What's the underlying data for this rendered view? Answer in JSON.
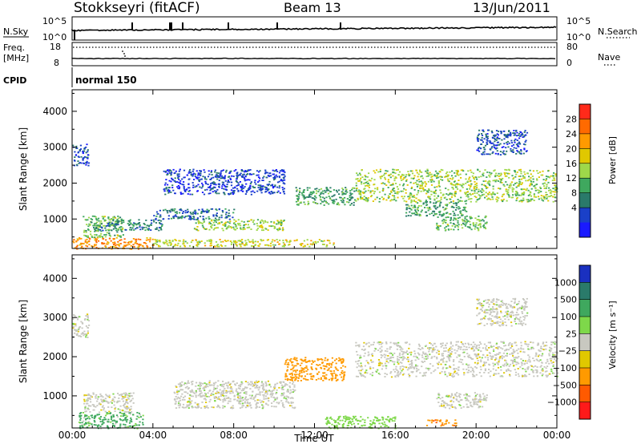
{
  "header": {
    "station": "Stokkseyri (fitACF)",
    "beam": "Beam 13",
    "date": "13/Jun/2011"
  },
  "strips": {
    "nsky_label": "N.Sky",
    "nsky_ticks": [
      "10^5",
      "10^0"
    ],
    "nsearch_label": "N.Search",
    "nsearch_ticks": [
      "10^5",
      "10^0"
    ],
    "freq_label_1": "Freq.",
    "freq_label_2": "[MHz]",
    "freq_ticks": [
      "18",
      "8"
    ],
    "nave_label": "Nave",
    "nave_ticks": [
      "80",
      "0"
    ],
    "cpid_label": "CPID",
    "cpid_value": "normal 150"
  },
  "axes": {
    "ylabel": "Slant Range [km]",
    "xlabel": "Time UT",
    "yticks": [
      "1000",
      "2000",
      "3000",
      "4000"
    ],
    "xticks": [
      "00:00",
      "04:00",
      "08:00",
      "12:00",
      "16:00",
      "20:00",
      "00:00"
    ]
  },
  "power_colorbar": {
    "label": "Power [dB]",
    "ticks": [
      "28",
      "24",
      "20",
      "16",
      "12",
      "8",
      "4"
    ],
    "colors": [
      "#ff2a1a",
      "#ff6a00",
      "#ff9a00",
      "#e0c800",
      "#9ed84a",
      "#3fa85e",
      "#2a7a6a",
      "#1a40c8",
      "#1a1aff"
    ]
  },
  "velocity_colorbar": {
    "label": "Velocity [m s⁻¹]",
    "ticks": [
      "1000",
      "500",
      "100",
      "25",
      "−25",
      "−100",
      "−500",
      "−1000"
    ],
    "colors": [
      "#1a30c0",
      "#2a7a6a",
      "#3fa85e",
      "#7ed84a",
      "#c8c8c0",
      "#e0c800",
      "#ff9a00",
      "#ff5a00",
      "#ff1a1a"
    ]
  },
  "chart_data": [
    {
      "type": "heatmap",
      "title": "Power",
      "xlabel": "Time UT",
      "ylabel": "Slant Range [km]",
      "x_range": [
        "00:00",
        "24:00"
      ],
      "ylim": [
        180,
        4600
      ],
      "colorbar_label": "Power [dB]",
      "colorbar_ticks": [
        4,
        8,
        12,
        16,
        20,
        24,
        28
      ],
      "regions": [
        {
          "t_start": 0.0,
          "t_end": 0.8,
          "r_start": 2500,
          "r_end": 3100,
          "value_db": 6
        },
        {
          "t_start": 0.0,
          "t_end": 4.0,
          "r_start": 180,
          "r_end": 500,
          "value_db": 24
        },
        {
          "t_start": 0.5,
          "t_end": 2.5,
          "r_start": 500,
          "r_end": 1100,
          "value_db": 14
        },
        {
          "t_start": 1.0,
          "t_end": 4.5,
          "r_start": 700,
          "r_end": 1000,
          "value_db": 10
        },
        {
          "t_start": 4.0,
          "t_end": 8.0,
          "r_start": 1000,
          "r_end": 1300,
          "value_db": 8
        },
        {
          "t_start": 6.0,
          "t_end": 10.5,
          "r_start": 700,
          "r_end": 1000,
          "value_db": 16
        },
        {
          "t_start": 4.0,
          "t_end": 13.0,
          "r_start": 250,
          "r_end": 450,
          "value_db": 18
        },
        {
          "t_start": 11.0,
          "t_end": 14.0,
          "r_start": 1400,
          "r_end": 1900,
          "value_db": 12
        },
        {
          "t_start": 14.0,
          "t_end": 24.0,
          "r_start": 1500,
          "r_end": 2400,
          "value_db": 16
        },
        {
          "t_start": 16.5,
          "t_end": 19.5,
          "r_start": 1100,
          "r_end": 1500,
          "value_db": 12
        },
        {
          "t_start": 18.0,
          "t_end": 20.5,
          "r_start": 700,
          "r_end": 1100,
          "value_db": 14
        },
        {
          "t_start": 20.0,
          "t_end": 22.5,
          "r_start": 2800,
          "r_end": 3500,
          "value_db": 6
        },
        {
          "t_start": 4.5,
          "t_end": 10.5,
          "r_start": 1700,
          "r_end": 2400,
          "value_db": 5
        }
      ]
    },
    {
      "type": "heatmap",
      "title": "Velocity",
      "xlabel": "Time UT",
      "ylabel": "Slant Range [km]",
      "x_range": [
        "00:00",
        "24:00"
      ],
      "ylim": [
        180,
        4600
      ],
      "colorbar_label": "Velocity [m s⁻¹]",
      "colorbar_ticks": [
        -1000,
        -500,
        -100,
        -25,
        25,
        100,
        500,
        1000
      ],
      "regions": [
        {
          "t_start": 0.0,
          "t_end": 0.8,
          "r_start": 2500,
          "r_end": 3100,
          "value_ms": 0
        },
        {
          "t_start": 0.3,
          "t_end": 3.5,
          "r_start": 180,
          "r_end": 600,
          "value_ms": 200
        },
        {
          "t_start": 0.5,
          "t_end": 3.0,
          "r_start": 600,
          "r_end": 1100,
          "value_ms": 0
        },
        {
          "t_start": 5.0,
          "t_end": 11.0,
          "r_start": 700,
          "r_end": 1400,
          "value_ms": 0
        },
        {
          "t_start": 10.5,
          "t_end": 13.5,
          "r_start": 1400,
          "r_end": 2000,
          "value_ms": -300
        },
        {
          "t_start": 12.5,
          "t_end": 16.0,
          "r_start": 180,
          "r_end": 500,
          "value_ms": 60
        },
        {
          "t_start": 14.0,
          "t_end": 24.0,
          "r_start": 1500,
          "r_end": 2400,
          "value_ms": 0
        },
        {
          "t_start": 17.5,
          "t_end": 19.0,
          "r_start": 250,
          "r_end": 400,
          "value_ms": -400
        },
        {
          "t_start": 18.0,
          "t_end": 20.5,
          "r_start": 700,
          "r_end": 1100,
          "value_ms": 0
        },
        {
          "t_start": 20.0,
          "t_end": 22.5,
          "r_start": 2800,
          "r_end": 3500,
          "value_ms": 0
        }
      ]
    }
  ]
}
